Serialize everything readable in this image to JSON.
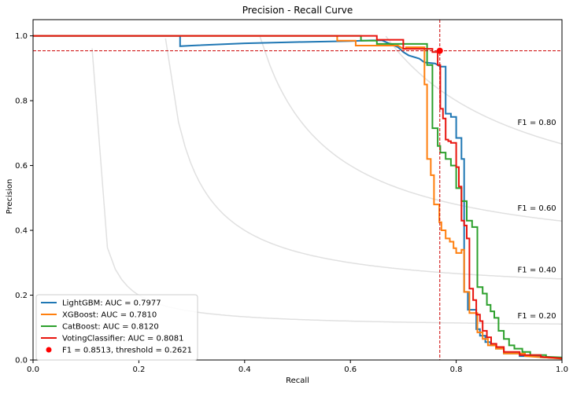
{
  "chart_data": {
    "type": "line",
    "title": "Precision - Recall Curve",
    "xlabel": "Recall",
    "ylabel": "Precision",
    "xlim": [
      0,
      1
    ],
    "ylim": [
      0,
      1.05
    ],
    "xticks": [
      0.0,
      0.2,
      0.4,
      0.6,
      0.8,
      1.0
    ],
    "xtick_labels": [
      "0.0",
      "0.2",
      "0.4",
      "0.6",
      "0.8",
      "1.0"
    ],
    "yticks": [
      0.0,
      0.2,
      0.4,
      0.6,
      0.8,
      1.0
    ],
    "ytick_labels": [
      "0.0",
      "0.2",
      "0.4",
      "0.6",
      "0.8",
      "1.0"
    ],
    "grid": false,
    "legend_position": "lower-left",
    "iso_f1": [
      {
        "f1": 0.2,
        "label": "F1 = 0.20",
        "label_at": [
          0.916,
          0.138
        ]
      },
      {
        "f1": 0.4,
        "label": "F1 = 0.40",
        "label_at": [
          0.916,
          0.28
        ]
      },
      {
        "f1": 0.6,
        "label": "F1 = 0.60",
        "label_at": [
          0.916,
          0.47
        ]
      },
      {
        "f1": 0.8,
        "label": "F1 = 0.80",
        "label_at": [
          0.916,
          0.735
        ]
      }
    ],
    "series": [
      {
        "name": "LightGBM: AUC = 0.7977",
        "color": "#1f77b4",
        "points": [
          [
            0,
            1.0
          ],
          [
            0.278,
            1.0
          ],
          [
            0.278,
            0.968
          ],
          [
            0.3,
            0.97
          ],
          [
            0.4,
            0.977
          ],
          [
            0.5,
            0.981
          ],
          [
            0.6,
            0.984
          ],
          [
            0.64,
            0.986
          ],
          [
            0.66,
            0.986
          ],
          [
            0.69,
            0.965
          ],
          [
            0.7,
            0.95
          ],
          [
            0.71,
            0.94
          ],
          [
            0.73,
            0.93
          ],
          [
            0.74,
            0.918
          ],
          [
            0.76,
            0.915
          ],
          [
            0.77,
            0.905
          ],
          [
            0.78,
            0.905
          ],
          [
            0.78,
            0.76
          ],
          [
            0.79,
            0.76
          ],
          [
            0.79,
            0.75
          ],
          [
            0.8,
            0.75
          ],
          [
            0.8,
            0.685
          ],
          [
            0.81,
            0.685
          ],
          [
            0.81,
            0.62
          ],
          [
            0.815,
            0.62
          ],
          [
            0.815,
            0.21
          ],
          [
            0.822,
            0.21
          ],
          [
            0.822,
            0.155
          ],
          [
            0.838,
            0.155
          ],
          [
            0.838,
            0.095
          ],
          [
            0.845,
            0.095
          ],
          [
            0.845,
            0.075
          ],
          [
            0.855,
            0.075
          ],
          [
            0.855,
            0.055
          ],
          [
            0.865,
            0.055
          ],
          [
            0.865,
            0.045
          ],
          [
            0.875,
            0.045
          ],
          [
            0.875,
            0.035
          ],
          [
            0.89,
            0.035
          ],
          [
            0.89,
            0.02
          ],
          [
            0.92,
            0.02
          ],
          [
            0.92,
            0.012
          ],
          [
            0.96,
            0.012
          ],
          [
            0.96,
            0.008
          ],
          [
            1.0,
            0.005
          ]
        ]
      },
      {
        "name": "XGBoost: AUC = 0.7810",
        "color": "#ff7f0e",
        "points": [
          [
            0,
            1.0
          ],
          [
            0.575,
            1.0
          ],
          [
            0.575,
            0.985
          ],
          [
            0.61,
            0.985
          ],
          [
            0.61,
            0.97
          ],
          [
            0.64,
            0.97
          ],
          [
            0.69,
            0.97
          ],
          [
            0.7,
            0.96
          ],
          [
            0.705,
            0.96
          ],
          [
            0.705,
            0.965
          ],
          [
            0.74,
            0.965
          ],
          [
            0.74,
            0.85
          ],
          [
            0.745,
            0.85
          ],
          [
            0.745,
            0.62
          ],
          [
            0.752,
            0.62
          ],
          [
            0.752,
            0.57
          ],
          [
            0.758,
            0.57
          ],
          [
            0.758,
            0.48
          ],
          [
            0.768,
            0.48
          ],
          [
            0.768,
            0.425
          ],
          [
            0.772,
            0.425
          ],
          [
            0.772,
            0.4
          ],
          [
            0.78,
            0.4
          ],
          [
            0.78,
            0.375
          ],
          [
            0.788,
            0.375
          ],
          [
            0.788,
            0.365
          ],
          [
            0.795,
            0.365
          ],
          [
            0.795,
            0.345
          ],
          [
            0.8,
            0.345
          ],
          [
            0.8,
            0.33
          ],
          [
            0.81,
            0.33
          ],
          [
            0.81,
            0.34
          ],
          [
            0.815,
            0.34
          ],
          [
            0.815,
            0.21
          ],
          [
            0.825,
            0.21
          ],
          [
            0.825,
            0.145
          ],
          [
            0.84,
            0.145
          ],
          [
            0.84,
            0.085
          ],
          [
            0.85,
            0.085
          ],
          [
            0.85,
            0.065
          ],
          [
            0.86,
            0.065
          ],
          [
            0.86,
            0.045
          ],
          [
            0.875,
            0.045
          ],
          [
            0.875,
            0.035
          ],
          [
            0.89,
            0.035
          ],
          [
            0.89,
            0.02
          ],
          [
            0.93,
            0.02
          ],
          [
            0.93,
            0.012
          ],
          [
            1.0,
            0.004
          ]
        ]
      },
      {
        "name": "CatBoost: AUC = 0.8120",
        "color": "#2ca02c",
        "points": [
          [
            0,
            1.0
          ],
          [
            0.62,
            1.0
          ],
          [
            0.62,
            0.985
          ],
          [
            0.65,
            0.985
          ],
          [
            0.65,
            0.975
          ],
          [
            0.745,
            0.975
          ],
          [
            0.745,
            0.91
          ],
          [
            0.755,
            0.91
          ],
          [
            0.755,
            0.715
          ],
          [
            0.765,
            0.715
          ],
          [
            0.765,
            0.66
          ],
          [
            0.77,
            0.66
          ],
          [
            0.77,
            0.64
          ],
          [
            0.78,
            0.64
          ],
          [
            0.78,
            0.62
          ],
          [
            0.79,
            0.62
          ],
          [
            0.79,
            0.6
          ],
          [
            0.8,
            0.6
          ],
          [
            0.8,
            0.53
          ],
          [
            0.81,
            0.53
          ],
          [
            0.81,
            0.49
          ],
          [
            0.82,
            0.49
          ],
          [
            0.82,
            0.43
          ],
          [
            0.83,
            0.43
          ],
          [
            0.83,
            0.41
          ],
          [
            0.84,
            0.41
          ],
          [
            0.84,
            0.225
          ],
          [
            0.85,
            0.225
          ],
          [
            0.85,
            0.205
          ],
          [
            0.858,
            0.205
          ],
          [
            0.858,
            0.17
          ],
          [
            0.865,
            0.17
          ],
          [
            0.865,
            0.15
          ],
          [
            0.872,
            0.15
          ],
          [
            0.872,
            0.13
          ],
          [
            0.88,
            0.13
          ],
          [
            0.88,
            0.09
          ],
          [
            0.89,
            0.09
          ],
          [
            0.89,
            0.065
          ],
          [
            0.9,
            0.065
          ],
          [
            0.9,
            0.045
          ],
          [
            0.91,
            0.045
          ],
          [
            0.91,
            0.035
          ],
          [
            0.925,
            0.035
          ],
          [
            0.925,
            0.025
          ],
          [
            0.94,
            0.025
          ],
          [
            0.94,
            0.015
          ],
          [
            0.97,
            0.015
          ],
          [
            0.97,
            0.01
          ],
          [
            1.0,
            0.008
          ]
        ]
      },
      {
        "name": "VotingClassifier: AUC = 0.8081",
        "color": "#e8140e",
        "points": [
          [
            0,
            1.0
          ],
          [
            0.65,
            1.0
          ],
          [
            0.65,
            0.988
          ],
          [
            0.7,
            0.988
          ],
          [
            0.7,
            0.96
          ],
          [
            0.755,
            0.96
          ],
          [
            0.755,
            0.95
          ],
          [
            0.765,
            0.95
          ],
          [
            0.765,
            0.91
          ],
          [
            0.77,
            0.91
          ],
          [
            0.77,
            0.775
          ],
          [
            0.775,
            0.775
          ],
          [
            0.775,
            0.745
          ],
          [
            0.78,
            0.745
          ],
          [
            0.78,
            0.68
          ],
          [
            0.785,
            0.68
          ],
          [
            0.785,
            0.675
          ],
          [
            0.79,
            0.675
          ],
          [
            0.79,
            0.67
          ],
          [
            0.8,
            0.67
          ],
          [
            0.8,
            0.595
          ],
          [
            0.805,
            0.595
          ],
          [
            0.805,
            0.535
          ],
          [
            0.81,
            0.535
          ],
          [
            0.81,
            0.43
          ],
          [
            0.815,
            0.43
          ],
          [
            0.815,
            0.415
          ],
          [
            0.82,
            0.415
          ],
          [
            0.82,
            0.375
          ],
          [
            0.825,
            0.375
          ],
          [
            0.825,
            0.22
          ],
          [
            0.832,
            0.22
          ],
          [
            0.832,
            0.185
          ],
          [
            0.838,
            0.185
          ],
          [
            0.838,
            0.14
          ],
          [
            0.845,
            0.14
          ],
          [
            0.845,
            0.12
          ],
          [
            0.85,
            0.12
          ],
          [
            0.85,
            0.09
          ],
          [
            0.858,
            0.09
          ],
          [
            0.858,
            0.07
          ],
          [
            0.866,
            0.07
          ],
          [
            0.866,
            0.05
          ],
          [
            0.876,
            0.05
          ],
          [
            0.876,
            0.04
          ],
          [
            0.89,
            0.04
          ],
          [
            0.89,
            0.025
          ],
          [
            0.92,
            0.025
          ],
          [
            0.92,
            0.015
          ],
          [
            0.96,
            0.015
          ],
          [
            0.96,
            0.01
          ],
          [
            1.0,
            0.005
          ]
        ]
      }
    ],
    "best_point": {
      "label": "F1 = 0.8513, threshold = 0.2621",
      "recall": 0.769,
      "precision": 0.954,
      "color": "#ff0000"
    }
  }
}
